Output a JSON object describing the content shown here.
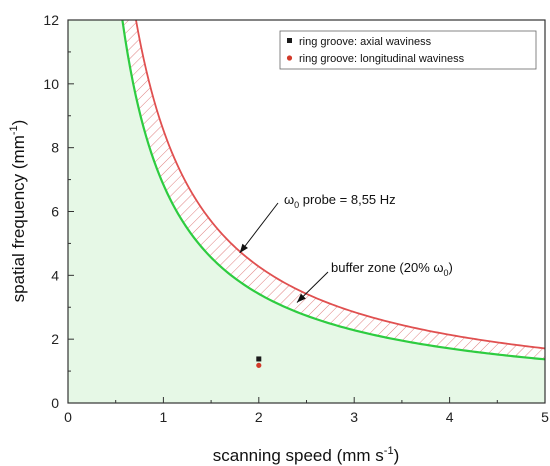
{
  "chart_data": {
    "type": "line",
    "xlabel": "scanning speed (mm s",
    "xlabel_sup": "-1",
    "xlabel_tail": ")",
    "ylabel": "spatial frequency (mm",
    "ylabel_sup": "-1",
    "ylabel_tail": ")",
    "xlim": [
      0,
      5
    ],
    "ylim": [
      0,
      12
    ],
    "x_ticks": [
      0,
      1,
      2,
      3,
      4,
      5
    ],
    "y_ticks": [
      0,
      2,
      4,
      6,
      8,
      10,
      12
    ],
    "grid": false,
    "legend_position": "top-right",
    "series": [
      {
        "name": "ring groove: axial waviness",
        "kind": "scatter",
        "marker": "square",
        "color": "#1a1a1a",
        "x": [
          2
        ],
        "y": [
          1.38
        ]
      },
      {
        "name": "ring groove: longitudinal waviness",
        "kind": "scatter",
        "marker": "circle",
        "color": "#d23a2a",
        "x": [
          2
        ],
        "y": [
          1.18
        ]
      }
    ],
    "curves": [
      {
        "label": "green curve (lower bound of buffer zone)",
        "color": "#2ecc40",
        "constant": 6.84,
        "x": [
          0.57,
          0.7,
          0.85,
          1,
          1.25,
          1.5,
          1.75,
          2,
          2.5,
          3,
          3.5,
          4,
          4.5,
          5
        ],
        "y": [
          12,
          9.77,
          8.05,
          6.84,
          5.47,
          4.56,
          3.91,
          3.42,
          2.74,
          2.28,
          1.95,
          1.71,
          1.52,
          1.37
        ]
      },
      {
        "label": "red curve (ω0 probe)",
        "color": "#e05050",
        "constant": 8.55,
        "x": [
          0.71,
          0.85,
          1,
          1.25,
          1.5,
          1.75,
          2,
          2.5,
          3,
          3.5,
          4,
          4.5,
          5
        ],
        "y": [
          12,
          10.06,
          8.55,
          6.84,
          5.7,
          4.89,
          4.28,
          3.42,
          2.85,
          2.44,
          2.14,
          1.9,
          1.71
        ]
      }
    ],
    "annotations": [
      {
        "text_pre": "ω",
        "text_sub": "0",
        "text_post": " probe = 8,55 Hz",
        "arrow_to": [
          1.8,
          4.7
        ]
      },
      {
        "text_pre": "buffer zone (20% ω",
        "text_sub": "0",
        "text_post": ")",
        "arrow_to": [
          2.4,
          3.15
        ]
      }
    ],
    "colors": {
      "shaded_region": "#e6f8e6",
      "hatch": "#e08080",
      "axis": "#333333"
    }
  }
}
